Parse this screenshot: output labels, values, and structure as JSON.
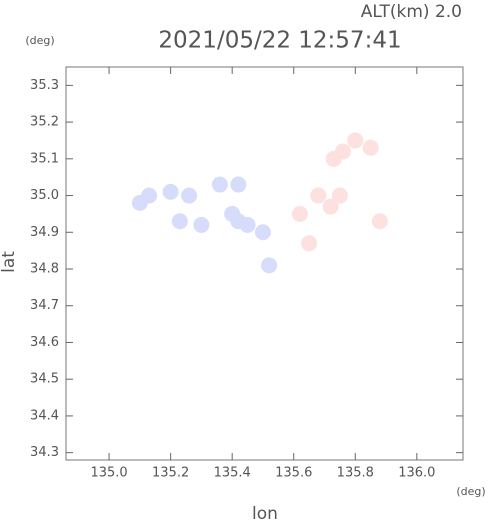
{
  "chart_data": {
    "type": "scatter",
    "title": "2021/05/22 12:57:41",
    "subtitle": "ALT(km) 2.0",
    "y_unit": "(deg)",
    "x_unit": "(deg)",
    "xlabel": "lon",
    "ylabel": "lat",
    "xlim": [
      134.86,
      136.15
    ],
    "ylim": [
      34.28,
      35.35
    ],
    "xticks": [
      {
        "value": 135,
        "label": "135.0"
      },
      135.2,
      135.4,
      135.6,
      135.8,
      {
        "value": 136,
        "label": "136.0"
      }
    ],
    "yticks": [
      34.3,
      34.4,
      34.5,
      34.6,
      34.7,
      34.8,
      34.9,
      {
        "value": 35,
        "label": "35.0"
      },
      35.1,
      35.2,
      35.3
    ],
    "series": [
      {
        "color": "#d8dcfb",
        "x": [
          135.1,
          135.13,
          135.2,
          135.26,
          135.36,
          135.42,
          135.4,
          135.42,
          135.45,
          135.5,
          135.3,
          135.23,
          135.52
        ],
        "y": [
          34.98,
          35.0,
          35.01,
          35.0,
          35.03,
          35.03,
          34.95,
          34.93,
          34.92,
          34.9,
          34.92,
          34.93,
          34.81
        ]
      },
      {
        "color": "#fde0e0",
        "x": [
          135.68,
          135.72,
          135.75,
          135.62,
          135.65,
          135.73,
          135.76,
          135.8,
          135.85,
          135.88
        ],
        "y": [
          35.0,
          34.97,
          35.0,
          34.95,
          34.87,
          35.1,
          35.12,
          35.15,
          35.13,
          34.93
        ]
      }
    ]
  }
}
